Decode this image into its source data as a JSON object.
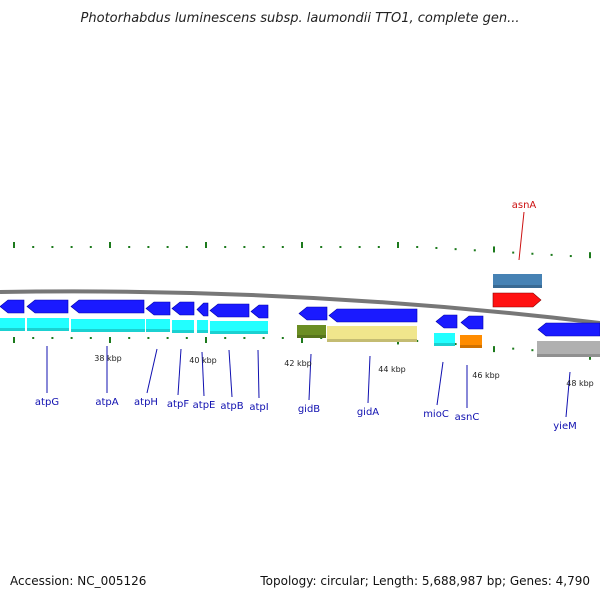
{
  "header": {
    "title": "Photorhabdus luminescens subsp. laumondii TTO1, complete gen..."
  },
  "footer": {
    "accession": "Accession: NC_005126",
    "summary": "Topology: circular; Length: 5,688,987 bp; Genes: 4,790"
  },
  "ruler": {
    "ticks": [
      "38 kbp",
      "40 kbp",
      "42 kbp",
      "44 kbp",
      "46 kbp",
      "48 kbp"
    ]
  },
  "genes": [
    {
      "name": "atpG",
      "strand": "reverse",
      "color": "#1a1aff"
    },
    {
      "name": "atpA",
      "strand": "reverse",
      "color": "#1a1aff"
    },
    {
      "name": "atpH",
      "strand": "reverse",
      "color": "#1a1aff"
    },
    {
      "name": "atpF",
      "strand": "reverse",
      "color": "#1a1aff"
    },
    {
      "name": "atpE",
      "strand": "reverse",
      "color": "#1a1aff"
    },
    {
      "name": "atpB",
      "strand": "reverse",
      "color": "#1a1aff"
    },
    {
      "name": "atpI",
      "strand": "reverse",
      "color": "#1a1aff"
    },
    {
      "name": "gidB",
      "strand": "reverse",
      "color": "#1a1aff"
    },
    {
      "name": "gidA",
      "strand": "reverse",
      "color": "#1a1aff"
    },
    {
      "name": "mioC",
      "strand": "reverse",
      "color": "#1a1aff"
    },
    {
      "name": "asnC",
      "strand": "reverse",
      "color": "#1a1aff"
    },
    {
      "name": "yieM",
      "strand": "reverse",
      "color": "#1a1aff"
    },
    {
      "name": "asnA",
      "strand": "forward",
      "color": "#ff1111"
    }
  ],
  "colors": {
    "backbone": "#777777",
    "tick": "#1c7a1c",
    "cds_blue": "#1a1aff",
    "cyan": "#22ffff",
    "olive": "#6b8e23",
    "khaki": "#f0e68c",
    "orange": "#ff8c00",
    "silver": "#b0b0b0",
    "steelblue": "#4682b4",
    "red": "#ff1111"
  }
}
